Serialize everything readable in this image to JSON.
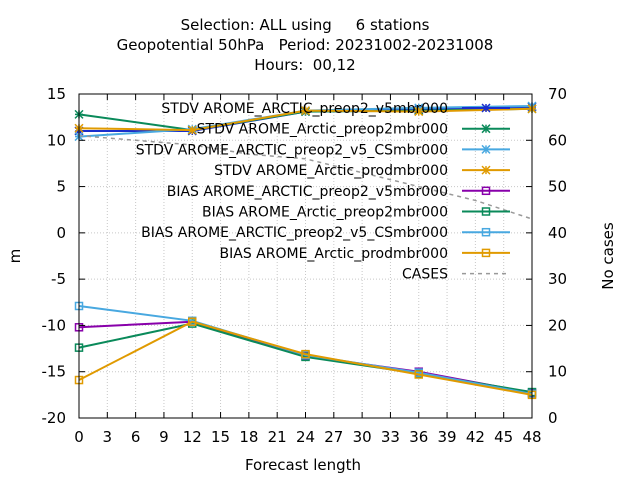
{
  "chart_data": {
    "type": "line",
    "title_lines": [
      "Selection: ALL using     6 stations",
      "Geopotential 50hPa   Period: 20231002-20231008",
      "Hours:  00,12"
    ],
    "xlabel": "Forecast length",
    "ylabel": "m",
    "y2label": "No cases",
    "xlim": [
      0,
      48
    ],
    "ylim": [
      -20,
      15
    ],
    "y2lim": [
      0,
      70
    ],
    "xticks": [
      0,
      3,
      6,
      9,
      12,
      15,
      18,
      21,
      24,
      27,
      30,
      33,
      36,
      39,
      42,
      45,
      48
    ],
    "yticks": [
      -20,
      -15,
      -10,
      -5,
      0,
      5,
      10,
      15
    ],
    "y2ticks": [
      0,
      10,
      20,
      30,
      40,
      50,
      60,
      70
    ],
    "grid": true,
    "legend_position": "top-right",
    "series": [
      {
        "name": "STDV AROME_ARCTIC_preop2_v5mbr000",
        "color": "#1a2ecc",
        "marker": "asterisk",
        "axis": "y",
        "x": [
          0,
          12,
          24,
          36,
          48
        ],
        "y": [
          11.0,
          11.0,
          13.1,
          13.3,
          13.6
        ]
      },
      {
        "name": "STDV AROME_Arctic_preop2mbr000",
        "color": "#0a8a5a",
        "marker": "asterisk",
        "axis": "y",
        "x": [
          0,
          12,
          24,
          36,
          48
        ],
        "y": [
          12.8,
          11.1,
          13.1,
          13.2,
          13.4
        ]
      },
      {
        "name": "STDV AROME_ARCTIC_preop2_v5_CSmbr000",
        "color": "#48a8e0",
        "marker": "asterisk",
        "axis": "y",
        "x": [
          0,
          12,
          24,
          36,
          48
        ],
        "y": [
          10.4,
          11.2,
          13.2,
          13.5,
          13.7
        ]
      },
      {
        "name": "STDV AROME_Arctic_prodmbr000",
        "color": "#e09a00",
        "marker": "asterisk",
        "axis": "y",
        "x": [
          0,
          12,
          24,
          36,
          48
        ],
        "y": [
          11.3,
          11.1,
          13.2,
          13.1,
          13.4
        ]
      },
      {
        "name": "BIAS AROME_ARCTIC_preop2_v5mbr000",
        "color": "#8800aa",
        "marker": "square",
        "axis": "y",
        "x": [
          0,
          12,
          24,
          36,
          48
        ],
        "y": [
          -10.2,
          -9.6,
          -13.3,
          -15.0,
          -17.3
        ]
      },
      {
        "name": "BIAS AROME_Arctic_preop2mbr000",
        "color": "#0a8a5a",
        "marker": "square",
        "axis": "y",
        "x": [
          0,
          12,
          24,
          36,
          48
        ],
        "y": [
          -12.4,
          -9.8,
          -13.4,
          -15.2,
          -17.2
        ]
      },
      {
        "name": "BIAS AROME_ARCTIC_preop2_v5_CSmbr000",
        "color": "#48a8e0",
        "marker": "square",
        "axis": "y",
        "x": [
          0,
          12,
          24,
          36,
          48
        ],
        "y": [
          -7.9,
          -9.5,
          -13.2,
          -15.1,
          -17.4
        ]
      },
      {
        "name": "BIAS AROME_Arctic_prodmbr000",
        "color": "#e09a00",
        "marker": "square",
        "axis": "y",
        "x": [
          0,
          12,
          24,
          36,
          48
        ],
        "y": [
          -15.9,
          -9.6,
          -13.1,
          -15.3,
          -17.5
        ]
      },
      {
        "name": "CASES",
        "color": "#999999",
        "marker": "none",
        "dashed": true,
        "axis": "y2",
        "x": [
          0,
          6,
          12,
          18,
          24,
          30,
          36,
          42,
          48
        ],
        "y": [
          61,
          60,
          59,
          57,
          56,
          53,
          50,
          47,
          43
        ]
      }
    ]
  }
}
